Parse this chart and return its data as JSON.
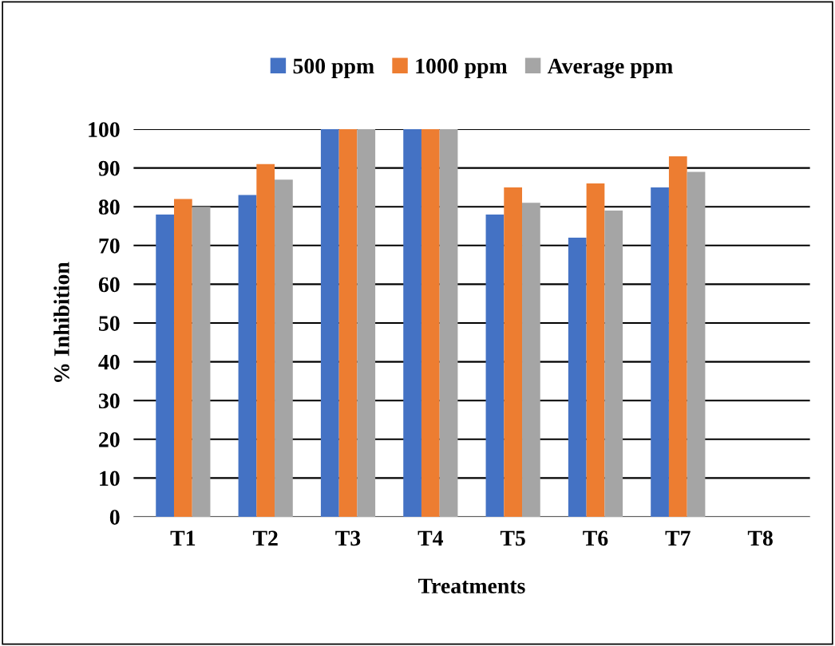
{
  "chart_data": {
    "type": "bar",
    "xlabel": "Treatments",
    "ylabel": "% Inhibition",
    "categories": [
      "T1",
      "T2",
      "T3",
      "T4",
      "T5",
      "T6",
      "T7",
      "T8"
    ],
    "series": [
      {
        "name": "500 ppm",
        "color": "#4472c4",
        "values": [
          78,
          83,
          100,
          100,
          78,
          72,
          85,
          0
        ]
      },
      {
        "name": "1000 ppm",
        "color": "#ed7d31",
        "values": [
          82,
          91,
          100,
          100,
          85,
          86,
          93,
          0
        ]
      },
      {
        "name": "Average ppm",
        "color": "#a5a5a5",
        "values": [
          80,
          87,
          100,
          100,
          81,
          79,
          89,
          0
        ]
      }
    ],
    "ylim": [
      0,
      100
    ],
    "yticks": [
      0,
      10,
      20,
      30,
      40,
      50,
      60,
      70,
      80,
      90,
      100
    ],
    "grid": "y",
    "legend": "top"
  }
}
